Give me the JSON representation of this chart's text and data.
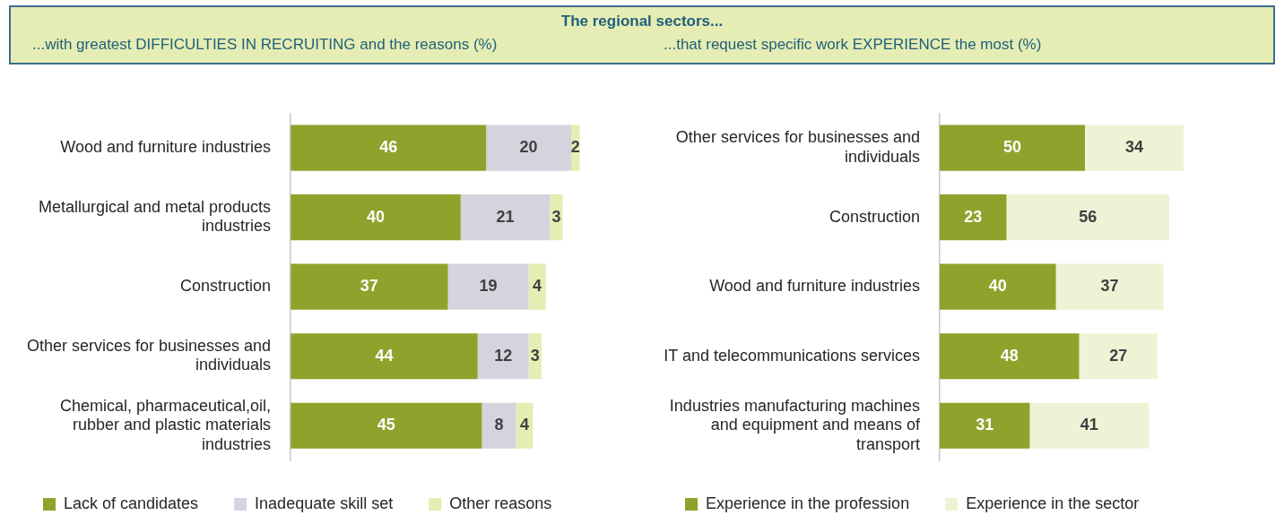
{
  "chart_data": [
    {
      "type": "bar",
      "orientation": "horizontal",
      "stacked": true,
      "title": "The regional sectors...",
      "subtitle": "...with greatest DIFFICULTIES IN RECRUITING and the reasons (%)",
      "categories": [
        "Wood and furniture industries",
        "Metallurgical and metal products industries",
        "Construction",
        "Other services for businesses and individuals",
        "Chemical, pharmaceutical,oil, rubber and plastic materials industries"
      ],
      "series": [
        {
          "name": "Lack of candidates",
          "color": "#8ea32b",
          "values": [
            46,
            40,
            37,
            44,
            45
          ]
        },
        {
          "name": "Inadequate skill set",
          "color": "#d4d3de",
          "values": [
            20,
            21,
            19,
            12,
            8
          ]
        },
        {
          "name": "Other reasons",
          "color": "#e4eeb2",
          "values": [
            2,
            3,
            4,
            3,
            4
          ]
        }
      ],
      "tick_labels": "y",
      "grid": false,
      "legend": "bottom",
      "data_labels": true
    },
    {
      "type": "bar",
      "orientation": "horizontal",
      "stacked": true,
      "subtitle": "...that request specific work EXPERIENCE the most (%)",
      "categories": [
        "Other services for businesses and individuals",
        "Construction",
        "Wood and furniture industries",
        "IT and telecommunications services",
        "Industries manufacturing machines and equipment and means of transport"
      ],
      "series": [
        {
          "name": "Experience in the profession",
          "color": "#8ea32b",
          "values": [
            50,
            23,
            40,
            48,
            31
          ]
        },
        {
          "name": "Experience in the sector",
          "color": "#eef3d5",
          "values": [
            34,
            56,
            37,
            27,
            41
          ]
        }
      ],
      "tick_labels": "y",
      "grid": false,
      "legend": "bottom",
      "data_labels": true
    }
  ]
}
